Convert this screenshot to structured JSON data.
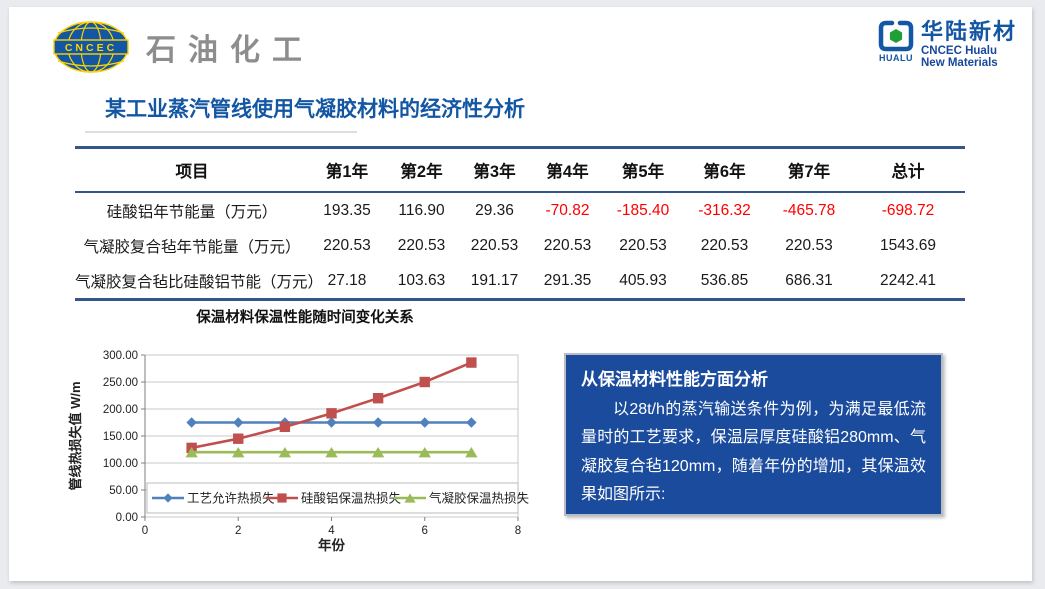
{
  "header": {
    "left_logo": {
      "badge": "CNCEC",
      "text": "石油化工"
    },
    "right_logo": {
      "icon_caption": "HUALU",
      "name_cn": "华陆新材",
      "name_en1": "CNCEC Hualu",
      "name_en2": "New Materials"
    }
  },
  "title": "某工业蒸汽管线使用气凝胶材料的经济性分析",
  "table": {
    "columns": [
      "项目",
      "第1年",
      "第2年",
      "第3年",
      "第4年",
      "第5年",
      "第6年",
      "第7年",
      "总计"
    ],
    "rows": [
      {
        "label": "硅酸铝年节能量（万元）",
        "values": [
          "193.35",
          "116.90",
          "29.36",
          "-70.82",
          "-185.40",
          "-316.32",
          "-465.78",
          "-698.72"
        ]
      },
      {
        "label": "气凝胶复合毡年节能量（万元）",
        "values": [
          "220.53",
          "220.53",
          "220.53",
          "220.53",
          "220.53",
          "220.53",
          "220.53",
          "1543.69"
        ]
      },
      {
        "label": "气凝胶复合毡比硅酸铝节能（万元）",
        "values": [
          "27.18",
          "103.63",
          "191.17",
          "291.35",
          "405.93",
          "536.85",
          "686.31",
          "2242.41"
        ]
      }
    ],
    "negative_color": "#ff0000"
  },
  "chart_data": {
    "type": "line",
    "title": "保温材料保温性能随时间变化关系",
    "xlabel": "年份",
    "ylabel": "管线热损失值 W/m",
    "x": [
      1,
      2,
      3,
      4,
      5,
      6,
      7
    ],
    "xlim": [
      0,
      8
    ],
    "x_ticks": [
      0,
      2,
      4,
      6,
      8
    ],
    "ylim": [
      0,
      300
    ],
    "y_tick_step": 50,
    "grid": true,
    "legend_position": "bottom-inside",
    "series": [
      {
        "name": "工艺允许热损失",
        "color": "#4f81bd",
        "marker": "diamond",
        "values": [
          175,
          175,
          175,
          175,
          175,
          175,
          175
        ]
      },
      {
        "name": "硅酸铝保温热损失",
        "color": "#c0504d",
        "marker": "square",
        "values": [
          128,
          145,
          167,
          192,
          220,
          250,
          286
        ]
      },
      {
        "name": "气凝胶保温热损失",
        "color": "#9bbb59",
        "marker": "triangle",
        "values": [
          120,
          120,
          120,
          120,
          120,
          120,
          120
        ]
      }
    ]
  },
  "analysis": {
    "heading": "从保温材料性能方面分析",
    "body": "以28t/h的蒸汽输送条件为例，为满足最低流量时的工艺要求，保温层厚度硅酸铝280mm、气凝胶复合毡120mm，随着年份的增加，其保温效果如图所示:",
    "background": "#1a4b9d"
  },
  "colors": {
    "title_blue": "#1356a3",
    "table_border": "#34558b",
    "negative": "#ff0000"
  }
}
